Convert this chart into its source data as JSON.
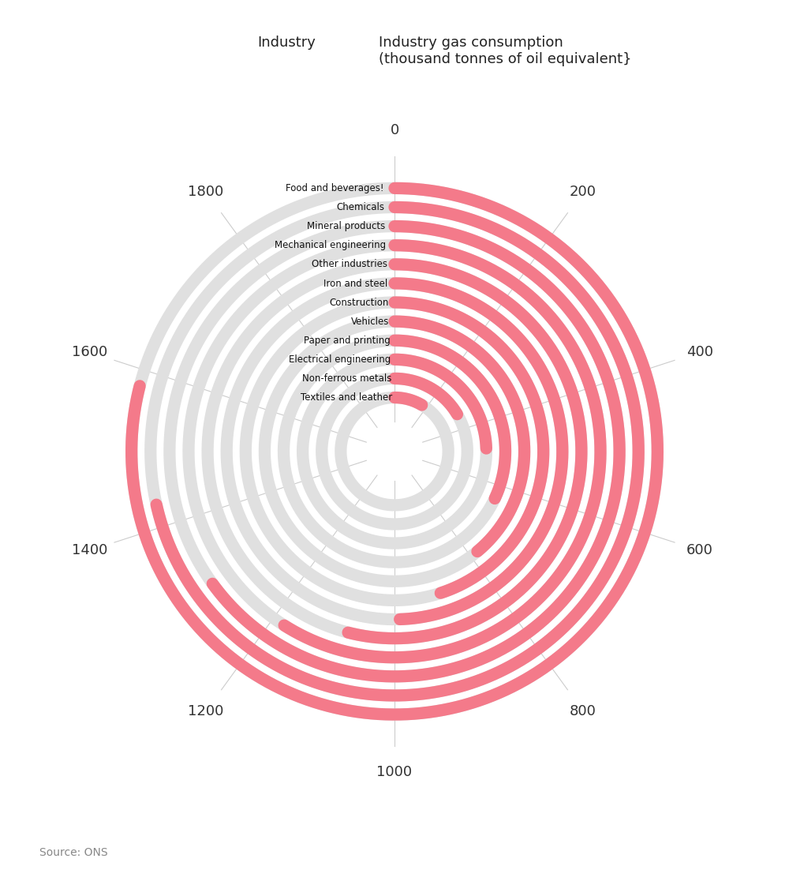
{
  "title1": "Industry",
  "title2": "Industry gas consumption\n(thousand tonnes of oil equivalent}",
  "source": "Source: ONS",
  "bar_color": "#F47A8A",
  "bg_ring_color": "#E0E0E0",
  "grid_line_color": "#CCCCCC",
  "text_color": "#222222",
  "categories": [
    "Food and beverages!",
    "Chemicals",
    "Mineral products",
    "Mechanical engineering",
    "Other industries",
    "Iron and steel",
    "Construction",
    "Vehicles",
    "Paper and printing",
    "Electrical engineering",
    "Non-ferrous metals",
    "Textiles and leather"
  ],
  "values": [
    1580,
    1430,
    1300,
    1180,
    1080,
    990,
    900,
    780,
    640,
    490,
    330,
    170
  ],
  "full_circle_value": 2000,
  "grid_values": [
    0,
    200,
    400,
    600,
    800,
    1000,
    1200,
    1400,
    1600,
    1800
  ],
  "r_inner": 0.18,
  "r_outer": 0.88,
  "linewidth": 11
}
